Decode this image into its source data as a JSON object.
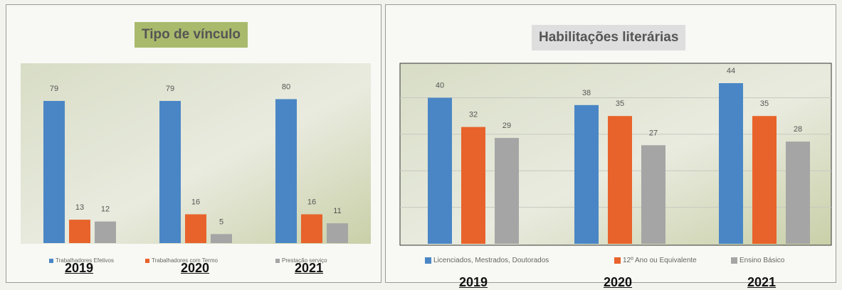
{
  "chart_data": [
    {
      "type": "bar",
      "title": "Tipo de vínculo",
      "categories": [
        "2019",
        "2020",
        "2021"
      ],
      "series": [
        {
          "name": "Trabalhadores Efetivos",
          "values": [
            79,
            79,
            80
          ],
          "color": "#4a86c5"
        },
        {
          "name": "Trabalhadores com Termo",
          "values": [
            13,
            16,
            16
          ],
          "color": "#e8632b"
        },
        {
          "name": "Prestação serviço",
          "values": [
            12,
            5,
            11
          ],
          "color": "#a5a5a5"
        }
      ],
      "grid": false,
      "legend": "bottom"
    },
    {
      "type": "bar",
      "title": "Habilitações literárias",
      "categories": [
        "2019",
        "2020",
        "2021"
      ],
      "series": [
        {
          "name": "Licenciados, Mestrados, Doutorados",
          "values": [
            40,
            38,
            44
          ],
          "color": "#4a86c5"
        },
        {
          "name": "12º Ano ou Equivalente",
          "values": [
            32,
            35,
            35
          ],
          "color": "#e8632b"
        },
        {
          "name": "Ensino Básico",
          "values": [
            29,
            27,
            28
          ],
          "color": "#a5a5a5"
        }
      ],
      "grid": true,
      "legend": "bottom"
    }
  ]
}
